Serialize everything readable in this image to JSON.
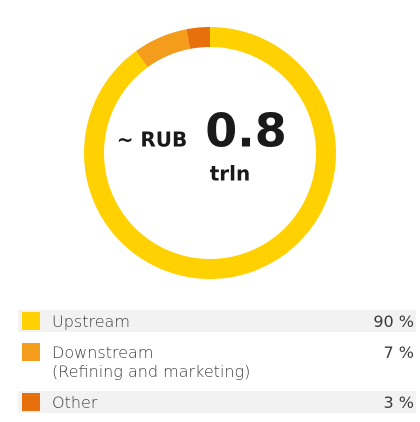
{
  "chart_data": {
    "type": "pie",
    "donut": true,
    "annotations": [
      "~ RUB",
      "0.8",
      "trln"
    ],
    "categories": [
      "Upstream",
      "Downstream\n(Refining and marketing)",
      "Other"
    ],
    "values": [
      90,
      7,
      3
    ],
    "value_labels": [
      "90 %",
      "7 %",
      "3 %"
    ],
    "colors": [
      "#FFD100",
      "#F49C1C",
      "#E8700C"
    ]
  }
}
